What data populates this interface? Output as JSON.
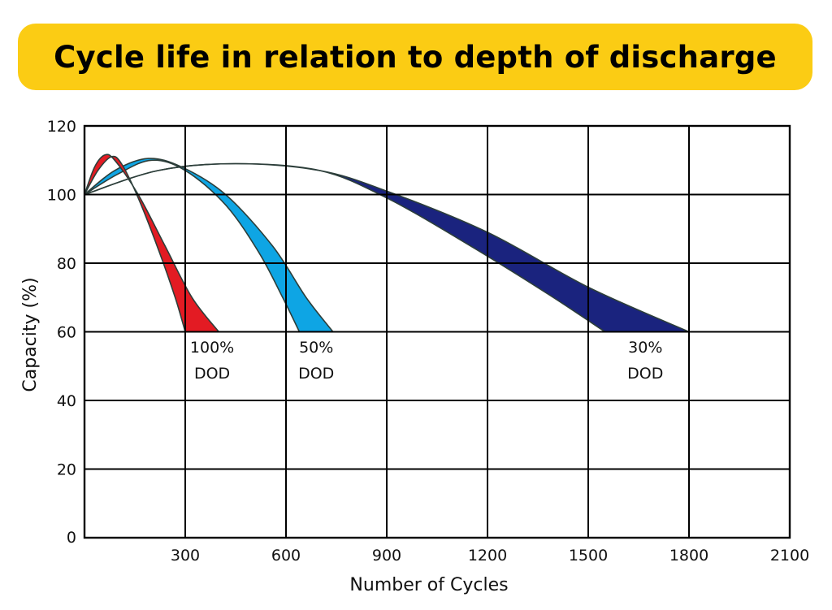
{
  "chart_data": {
    "type": "area",
    "title": "Cycle life in relation to depth of discharge",
    "xlabel": "Number of Cycles",
    "ylabel": "Capacity (%)",
    "xlim": [
      0,
      2100
    ],
    "ylim": [
      0,
      120
    ],
    "xticks": [
      300,
      600,
      900,
      1200,
      1500,
      1800,
      2100
    ],
    "yticks": [
      0,
      20,
      40,
      60,
      80,
      100,
      120
    ],
    "grid": true,
    "series": [
      {
        "name": "100% DOD",
        "label_lines": [
          "100%",
          "DOD"
        ],
        "label_at": [
          380,
          54
        ],
        "color": "#e31b23",
        "upper": [
          [
            0,
            100
          ],
          [
            30,
            108
          ],
          [
            60,
            111.5
          ],
          [
            90,
            110
          ],
          [
            160,
            100
          ],
          [
            240,
            85
          ],
          [
            320,
            70
          ],
          [
            400,
            60
          ]
        ],
        "lower": [
          [
            0,
            100
          ],
          [
            40,
            107
          ],
          [
            80,
            111
          ],
          [
            110,
            109
          ],
          [
            160,
            99
          ],
          [
            220,
            84
          ],
          [
            270,
            70
          ],
          [
            300,
            60
          ]
        ]
      },
      {
        "name": "50% DOD",
        "label_lines": [
          "50%",
          "DOD"
        ],
        "label_at": [
          690,
          54
        ],
        "color": "#0ea5e4",
        "upper": [
          [
            0,
            100
          ],
          [
            90,
            107
          ],
          [
            190,
            110.5
          ],
          [
            290,
            108
          ],
          [
            420,
            100
          ],
          [
            560,
            85
          ],
          [
            660,
            70
          ],
          [
            740,
            60
          ]
        ],
        "lower": [
          [
            0,
            100
          ],
          [
            100,
            106
          ],
          [
            200,
            110
          ],
          [
            300,
            107
          ],
          [
            420,
            97
          ],
          [
            520,
            83
          ],
          [
            590,
            70
          ],
          [
            640,
            60
          ]
        ]
      },
      {
        "name": "30% DOD",
        "label_lines": [
          "30%",
          "DOD"
        ],
        "label_at": [
          1670,
          54
        ],
        "color": "#1a237e",
        "upper": [
          [
            0,
            100
          ],
          [
            220,
            107
          ],
          [
            450,
            109
          ],
          [
            700,
            107
          ],
          [
            900,
            101
          ],
          [
            1200,
            89
          ],
          [
            1500,
            73
          ],
          [
            1800,
            60
          ]
        ],
        "lower": [
          [
            0,
            100
          ],
          [
            220,
            107
          ],
          [
            450,
            109
          ],
          [
            700,
            107
          ],
          [
            900,
            99
          ],
          [
            1150,
            85
          ],
          [
            1380,
            71
          ],
          [
            1550,
            60
          ]
        ]
      }
    ]
  }
}
